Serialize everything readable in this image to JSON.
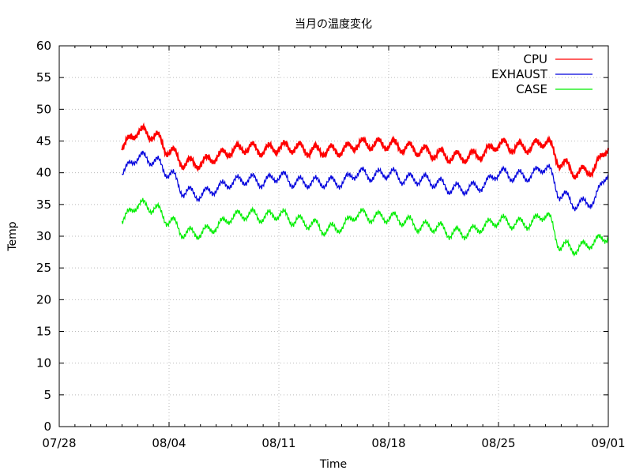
{
  "chart_data": {
    "type": "line",
    "title": "当月の温度変化",
    "xlabel": "Time",
    "ylabel": "Temp",
    "ylim": [
      0,
      60
    ],
    "yticks": [
      0,
      5,
      10,
      15,
      20,
      25,
      30,
      35,
      40,
      45,
      50,
      55,
      60
    ],
    "xlim": [
      "07/28",
      "09/01"
    ],
    "xtick_labels": [
      "07/28",
      "08/04",
      "08/11",
      "08/18",
      "08/25",
      "09/01"
    ],
    "grid": true,
    "legend_position": "top-right",
    "x": [
      "08/01",
      "08/02",
      "08/03",
      "08/04",
      "08/05",
      "08/06",
      "08/07",
      "08/08",
      "08/09",
      "08/10",
      "08/11",
      "08/12",
      "08/13",
      "08/14",
      "08/15",
      "08/16",
      "08/17",
      "08/18",
      "08/19",
      "08/20",
      "08/21",
      "08/22",
      "08/23",
      "08/24",
      "08/25",
      "08/26",
      "08/27",
      "08/28",
      "08/29",
      "08/30",
      "08/31",
      "09/01"
    ],
    "series": [
      {
        "name": "CPU",
        "color": "#ff0000",
        "values": [
          44,
          46.5,
          46,
          43.5,
          41.5,
          41.5,
          42.5,
          43.5,
          44,
          43.5,
          44,
          44,
          43.5,
          43.5,
          43.5,
          44.5,
          44.5,
          44.5,
          44,
          43.5,
          43,
          42.5,
          42.5,
          43,
          44.5,
          44,
          44,
          45,
          41.5,
          40,
          40.5,
          44
        ]
      },
      {
        "name": "EXHAUST",
        "color": "#0000dd",
        "values": [
          40,
          42.5,
          42,
          40,
          37,
          36.5,
          37.5,
          38.5,
          39,
          38.5,
          39.5,
          38.5,
          38.5,
          38.5,
          38.5,
          40,
          39.5,
          40,
          39,
          39,
          38.5,
          37.5,
          37.5,
          38,
          40,
          39.5,
          39.5,
          41,
          36.5,
          35,
          35.5,
          40
        ]
      },
      {
        "name": "CASE",
        "color": "#00ee00",
        "values": [
          32.5,
          35,
          34.5,
          32.5,
          30.5,
          30.5,
          31.5,
          33,
          33.5,
          33,
          33.5,
          32.5,
          32,
          31,
          31.5,
          33.5,
          33,
          33,
          32.5,
          31.5,
          31.5,
          30.5,
          30.5,
          31.5,
          32.5,
          32,
          32,
          33.5,
          28.5,
          28,
          29,
          30
        ]
      }
    ]
  }
}
